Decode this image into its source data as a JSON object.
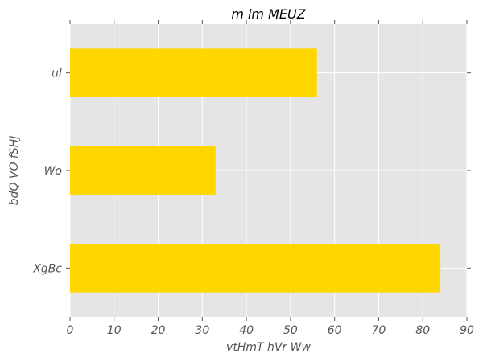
{
  "chart_data": {
    "type": "bar",
    "orientation": "horizontal",
    "title": "m lm MEUZ",
    "xlabel": "vtHmT hVr Ww",
    "ylabel": "bdQ VO fSHJ",
    "categories": [
      "XgBc",
      "Wo",
      "uI"
    ],
    "values": [
      84,
      33,
      56
    ],
    "xlim": [
      0,
      90
    ],
    "xticks": [
      0,
      10,
      20,
      30,
      40,
      50,
      60,
      70,
      80,
      90
    ],
    "grid": true,
    "legend": "none",
    "colors": {
      "bar": "#FFD700",
      "plot_background": "#E5E5E5",
      "grid": "#FFFFFF",
      "text": "#555555"
    }
  }
}
